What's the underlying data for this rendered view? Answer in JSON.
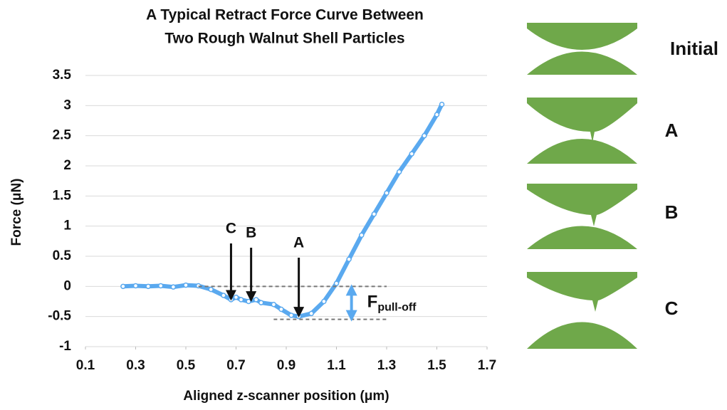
{
  "chart_data": {
    "type": "line",
    "title": [
      "A Typical Retract Force Curve Between",
      "Two Rough Walnut Shell Particles"
    ],
    "xlabel": "Aligned z-scanner position (μm)",
    "ylabel": "Force (μN)",
    "x": [
      0.25,
      0.3,
      0.35,
      0.4,
      0.45,
      0.5,
      0.55,
      0.6,
      0.65,
      0.68,
      0.7,
      0.72,
      0.75,
      0.78,
      0.8,
      0.85,
      0.88,
      0.92,
      0.95,
      1.0,
      1.05,
      1.1,
      1.15,
      1.2,
      1.25,
      1.3,
      1.35,
      1.4,
      1.45,
      1.5,
      1.52
    ],
    "series": [
      {
        "color": "#5aa9ef",
        "values": [
          0,
          0.01,
          0,
          0.01,
          -0.01,
          0.02,
          0.01,
          -0.05,
          -0.15,
          -0.22,
          -0.18,
          -0.22,
          -0.25,
          -0.22,
          -0.27,
          -0.3,
          -0.38,
          -0.48,
          -0.5,
          -0.45,
          -0.25,
          0.05,
          0.45,
          0.85,
          1.2,
          1.55,
          1.9,
          2.2,
          2.5,
          2.85,
          3.02
        ]
      }
    ],
    "xlim": [
      0.1,
      1.7
    ],
    "xticks": [
      0.1,
      0.3,
      0.5,
      0.7,
      0.9,
      1.1,
      1.3,
      1.5,
      1.7
    ],
    "ylim": [
      -1,
      3.5
    ],
    "yticks": [
      -1,
      -0.5,
      0,
      0.5,
      1,
      1.5,
      2,
      2.5,
      3,
      3.5
    ],
    "grid": true,
    "annotations": [
      {
        "text": "C",
        "x": 0.68
      },
      {
        "text": "B",
        "x": 0.76
      },
      {
        "text": "A",
        "x": 0.95
      }
    ],
    "pull_off": {
      "label": "F",
      "subscript": "pull-off"
    }
  },
  "diagram": {
    "labels": [
      "Initial",
      "A",
      "B",
      "C"
    ]
  }
}
